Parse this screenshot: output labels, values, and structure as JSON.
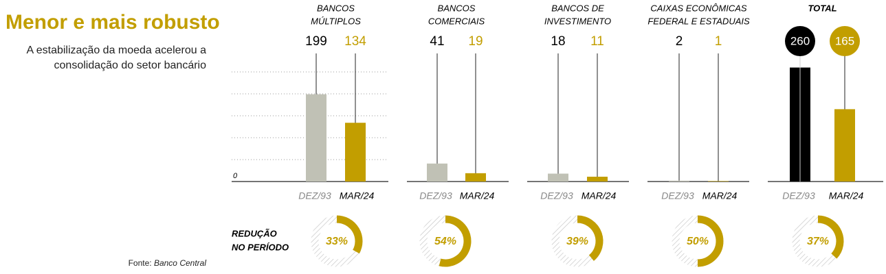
{
  "title": "Menor e mais robusto",
  "subtitle": [
    "A estabilização da moeda acelerou a",
    "consolidação do setor bancário"
  ],
  "reduction_heading": [
    "REDUÇÃO",
    "NO PERÍODO"
  ],
  "source_prefix": "Fonte:",
  "source": "Banco Central",
  "chart_data": [
    {
      "type": "bar",
      "title": [
        "BANCOS",
        "MÚLTIPLOS"
      ],
      "categories": [
        "DEZ/93",
        "MAR/24"
      ],
      "values": [
        199,
        134
      ],
      "colors": [
        "#c0c1b5",
        "#c29e00"
      ],
      "ylim": [
        0,
        300
      ],
      "yticks": [
        0
      ],
      "ygrid": [
        50,
        100,
        150,
        200,
        250
      ],
      "reduction": 33,
      "reduction_label": "33%"
    },
    {
      "type": "bar",
      "title": [
        "BANCOS",
        "COMERCIAIS"
      ],
      "categories": [
        "DEZ/93",
        "MAR/24"
      ],
      "values": [
        41,
        19
      ],
      "colors": [
        "#c0c1b5",
        "#c29e00"
      ],
      "ylim": [
        0,
        300
      ],
      "reduction": 54,
      "reduction_label": "54%"
    },
    {
      "type": "bar",
      "title": [
        "BANCOS DE",
        "INVESTIMENTO"
      ],
      "categories": [
        "DEZ/93",
        "MAR/24"
      ],
      "values": [
        18,
        11
      ],
      "colors": [
        "#c0c1b5",
        "#c29e00"
      ],
      "ylim": [
        0,
        300
      ],
      "reduction": 39,
      "reduction_label": "39%"
    },
    {
      "type": "bar",
      "title": [
        "CAIXAS ECONÔMICAS",
        "FEDERAL E ESTADUAIS"
      ],
      "categories": [
        "DEZ/93",
        "MAR/24"
      ],
      "values": [
        2,
        1
      ],
      "colors": [
        "#c0c1b5",
        "#c29e00"
      ],
      "ylim": [
        0,
        300
      ],
      "reduction": 50,
      "reduction_label": "50%"
    },
    {
      "type": "bar",
      "title": [
        "TOTAL"
      ],
      "title_bold": true,
      "label_style": "circle",
      "categories": [
        "DEZ/93",
        "MAR/24"
      ],
      "values": [
        260,
        165
      ],
      "colors": [
        "#000000",
        "#c29e00"
      ],
      "ylim": [
        0,
        300
      ],
      "reduction": 37,
      "reduction_label": "37%"
    }
  ]
}
